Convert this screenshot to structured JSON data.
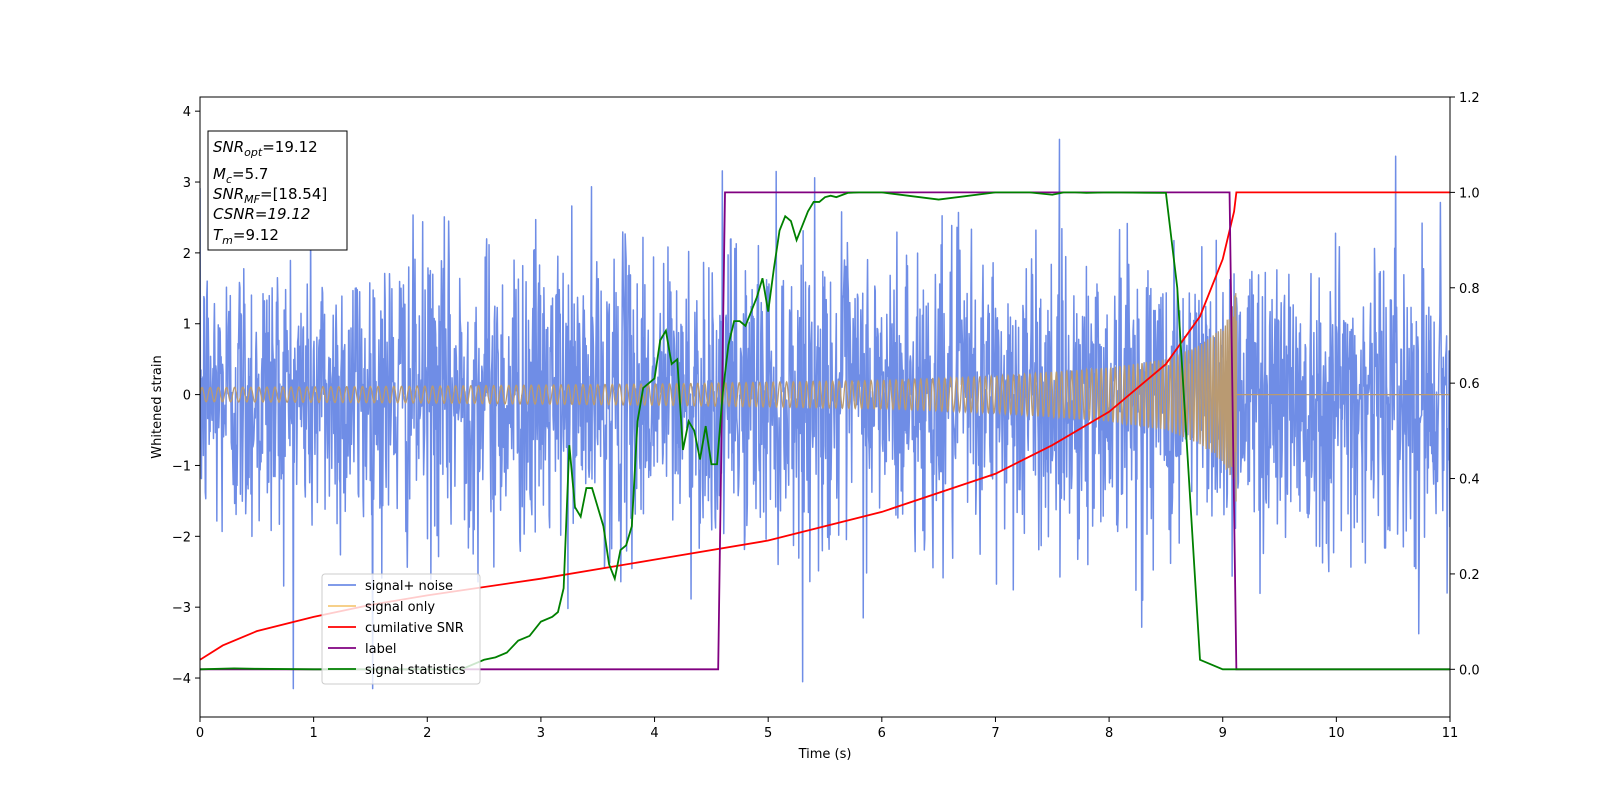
{
  "chart_data": {
    "type": "line",
    "xlabel": "Time (s)",
    "ylabel": "Whitened strain",
    "xlim": [
      0,
      11
    ],
    "ylim_left": [
      -4.55,
      4.2
    ],
    "ylim_right": [
      -0.1,
      1.2
    ],
    "x_ticks": [
      0,
      1,
      2,
      3,
      4,
      5,
      6,
      7,
      8,
      9,
      10,
      11
    ],
    "y_ticks_left": [
      -4,
      -3,
      -2,
      -1,
      0,
      1,
      2,
      3,
      4
    ],
    "y_ticks_right": [
      0.0,
      0.2,
      0.4,
      0.6,
      0.8,
      1.0,
      1.2
    ],
    "grid": false,
    "legend_position": "lower-left",
    "legend": [
      "signal+ noise",
      "signal only",
      "cumilative SNR",
      "label",
      "signal statistics"
    ],
    "colors": {
      "signal_noise": "#6f8de6",
      "signal_only": "#f5c97a",
      "signal_only_fill": "#b99a72",
      "cumulative_snr": "#ff0000",
      "label": "#800080",
      "signal_statistics": "#008000"
    },
    "info_box": {
      "snr_opt": "=19.12",
      "mc": "=5.7",
      "snr_mf": "=[18.54]",
      "csnr": "CSNR=19.12",
      "tm": "=9.12"
    },
    "series": [
      {
        "name": "signal+ noise",
        "axis": "left",
        "description_values": {
          "noise_std": 1.05,
          "max": 3.85,
          "min": -4.15
        }
      },
      {
        "name": "signal only",
        "axis": "left",
        "envelope": {
          "x": [
            0,
            2,
            4,
            6,
            7,
            8,
            8.5,
            8.8,
            9.0,
            9.1,
            9.12
          ],
          "amp": [
            0.1,
            0.12,
            0.15,
            0.2,
            0.26,
            0.38,
            0.5,
            0.7,
            0.95,
            1.3,
            1.6
          ]
        }
      },
      {
        "name": "cumilative SNR",
        "axis": "right",
        "x": [
          0,
          0.2,
          0.5,
          1,
          1.5,
          2,
          3,
          4,
          5,
          6,
          7,
          7.5,
          8,
          8.5,
          8.8,
          9.0,
          9.1,
          9.12,
          11
        ],
        "y": [
          0.02,
          0.05,
          0.08,
          0.11,
          0.135,
          0.155,
          0.19,
          0.23,
          0.27,
          0.33,
          0.41,
          0.47,
          0.54,
          0.64,
          0.74,
          0.86,
          0.96,
          1.0,
          1.0
        ]
      },
      {
        "name": "label",
        "axis": "right",
        "x": [
          0,
          4.56,
          4.62,
          9.06,
          9.12,
          11
        ],
        "y": [
          0,
          0,
          1,
          1,
          0,
          0
        ]
      },
      {
        "name": "signal statistics",
        "axis": "right",
        "x": [
          0,
          0.3,
          0.5,
          1,
          2,
          2.3,
          2.5,
          2.6,
          2.7,
          2.8,
          2.9,
          3.0,
          3.1,
          3.15,
          3.2,
          3.25,
          3.3,
          3.35,
          3.4,
          3.45,
          3.5,
          3.55,
          3.6,
          3.65,
          3.7,
          3.75,
          3.8,
          3.85,
          3.9,
          4.0,
          4.05,
          4.1,
          4.15,
          4.2,
          4.25,
          4.3,
          4.35,
          4.4,
          4.45,
          4.5,
          4.55,
          4.6,
          4.65,
          4.7,
          4.75,
          4.8,
          4.9,
          4.95,
          5.0,
          5.05,
          5.1,
          5.15,
          5.2,
          5.25,
          5.3,
          5.35,
          5.4,
          5.45,
          5.5,
          5.55,
          5.6,
          5.7,
          5.8,
          5.9,
          6.0,
          6.5,
          7.0,
          7.3,
          7.5,
          7.6,
          7.7,
          7.8,
          8.0,
          8.5,
          8.6,
          8.8,
          9.0,
          9.05,
          9.1,
          9.13,
          9.16,
          9.2,
          9.25,
          9.3,
          11
        ],
        "y": [
          0,
          0.002,
          0.001,
          0.0,
          0.0,
          0.0,
          0.02,
          0.025,
          0.035,
          0.06,
          0.07,
          0.1,
          0.11,
          0.12,
          0.17,
          0.47,
          0.34,
          0.32,
          0.38,
          0.38,
          0.34,
          0.3,
          0.22,
          0.19,
          0.25,
          0.26,
          0.3,
          0.52,
          0.59,
          0.61,
          0.69,
          0.71,
          0.64,
          0.65,
          0.46,
          0.52,
          0.5,
          0.44,
          0.51,
          0.43,
          0.43,
          0.58,
          0.68,
          0.73,
          0.73,
          0.72,
          0.78,
          0.82,
          0.75,
          0.84,
          0.92,
          0.95,
          0.94,
          0.9,
          0.93,
          0.96,
          0.98,
          0.98,
          0.99,
          0.993,
          0.99,
          0.999,
          1.0,
          1.0,
          1.0,
          0.985,
          1.0,
          1.0,
          0.995,
          1.0,
          1.0,
          0.999,
          1.0,
          0.999,
          0.8,
          0.02,
          0.0,
          0.0,
          0.0,
          0.0,
          0.0,
          0.0,
          0.0,
          0.0,
          0.0
        ]
      }
    ]
  }
}
